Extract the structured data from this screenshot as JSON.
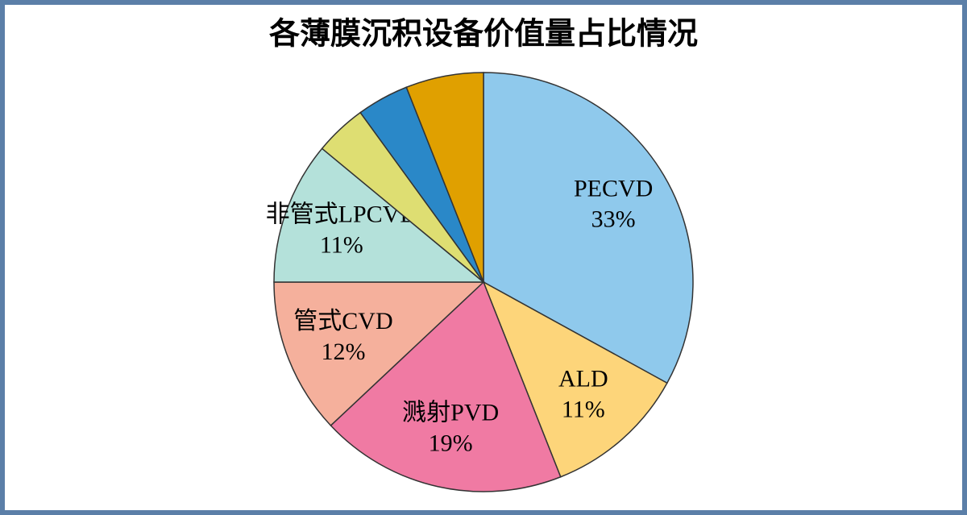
{
  "chart_data": {
    "type": "pie",
    "title": "各薄膜沉积设备价值量占比情况",
    "categories": [
      "PECVD",
      "ALD",
      "溅射PVD",
      "管式CVD",
      "非管式LPCVD",
      null,
      null,
      null
    ],
    "values": [
      33,
      11,
      19,
      12,
      11,
      4,
      4,
      6
    ],
    "value_labels": [
      "33%",
      "11%",
      "19%",
      "12%",
      "11%",
      null,
      null,
      null
    ],
    "colors": [
      "#8fc9ec",
      "#fdd57a",
      "#f07aa3",
      "#f5b09c",
      "#b4e1da",
      "#dede72",
      "#2a88c8",
      "#e0a000"
    ]
  }
}
